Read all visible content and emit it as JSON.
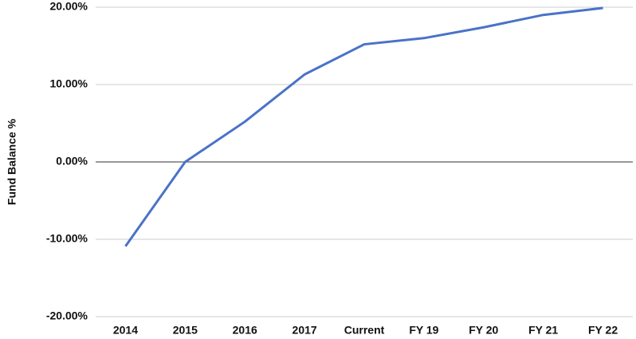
{
  "chart_data": {
    "type": "line",
    "y_axis_label": "Fund Balance %",
    "categories": [
      "2014",
      "2015",
      "2016",
      "2017",
      "Current",
      "FY 19",
      "FY 20",
      "FY 21",
      "FY 22"
    ],
    "series": [
      {
        "name": "Fund Balance %",
        "color": "#4a72c8",
        "values": [
          -10.9,
          0,
          5.2,
          11.3,
          15.2,
          16.0,
          17.4,
          19.0,
          19.9
        ]
      }
    ],
    "ylim": [
      -20,
      20
    ],
    "yticks": [
      {
        "value": -20,
        "label": "-20.00%"
      },
      {
        "value": -10,
        "label": "-10.00%"
      },
      {
        "value": 0,
        "label": "0.00%"
      },
      {
        "value": 10,
        "label": "10.00%"
      },
      {
        "value": 20,
        "label": "20.00%"
      }
    ],
    "grid": true
  }
}
